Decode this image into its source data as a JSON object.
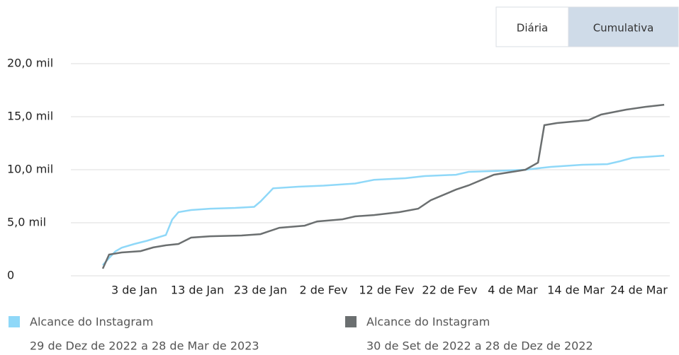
{
  "toggle": {
    "options": [
      "Diária",
      "Cumulativa"
    ],
    "selected": 1
  },
  "chart_data": {
    "type": "line",
    "xlim": [
      0,
      90
    ],
    "xticks": [
      {
        "value": 5,
        "label": "3 de Jan"
      },
      {
        "value": 15,
        "label": "13 de Jan"
      },
      {
        "value": 25,
        "label": "23 de Jan"
      },
      {
        "value": 35,
        "label": "2 de Fev"
      },
      {
        "value": 45,
        "label": "12 de Fev"
      },
      {
        "value": 55,
        "label": "22 de Fev"
      },
      {
        "value": 65,
        "label": "4 de Mar"
      },
      {
        "value": 75,
        "label": "14 de Mar"
      },
      {
        "value": 85,
        "label": "24 de Mar"
      }
    ],
    "ylim": [
      0,
      20000
    ],
    "yticks": [
      0,
      {
        "value": 5000,
        "label": "5,0 mil"
      },
      {
        "value": 10000,
        "label": "10,0 mil"
      },
      {
        "value": 15000,
        "label": "15,0 mil"
      },
      {
        "value": 20000,
        "label": "20,0 mil"
      }
    ],
    "grid": true,
    "series": [
      {
        "name": "Alcance do Instagram",
        "period": "29 de Dez de 2022 a 28 de Mar de 2023",
        "color": "#8fd8f8",
        "x": [
          0,
          1,
          2,
          3,
          5,
          7,
          10,
          11,
          12,
          14,
          17,
          21,
          24,
          25,
          27,
          31,
          35,
          40,
          43,
          48,
          51,
          56,
          58,
          62,
          67,
          71,
          76,
          80,
          82,
          84,
          89
        ],
        "values": [
          1000,
          1670,
          2300,
          2650,
          3000,
          3300,
          3850,
          5300,
          6000,
          6200,
          6330,
          6400,
          6500,
          7000,
          8250,
          8400,
          8500,
          8700,
          9050,
          9200,
          9400,
          9530,
          9800,
          9870,
          10000,
          10270,
          10470,
          10530,
          10800,
          11130,
          11330
        ]
      },
      {
        "name": "Alcance do Instagram",
        "period": "30 de Set de 2022 a 28 de Dez de 2022",
        "color": "#6b6f70",
        "x": [
          0,
          1,
          3,
          6,
          8,
          10,
          12,
          14,
          17,
          22,
          25,
          28,
          32,
          34,
          38,
          40,
          43,
          47,
          50,
          52,
          56,
          58,
          62,
          67,
          69,
          70,
          72,
          77,
          79,
          83,
          86,
          89
        ],
        "values": [
          670,
          2000,
          2200,
          2330,
          2670,
          2870,
          3000,
          3600,
          3730,
          3800,
          3930,
          4530,
          4730,
          5130,
          5330,
          5600,
          5730,
          6000,
          6330,
          7130,
          8130,
          8530,
          9530,
          10000,
          10670,
          14200,
          14400,
          14670,
          15200,
          15670,
          15930,
          16130
        ]
      }
    ]
  }
}
